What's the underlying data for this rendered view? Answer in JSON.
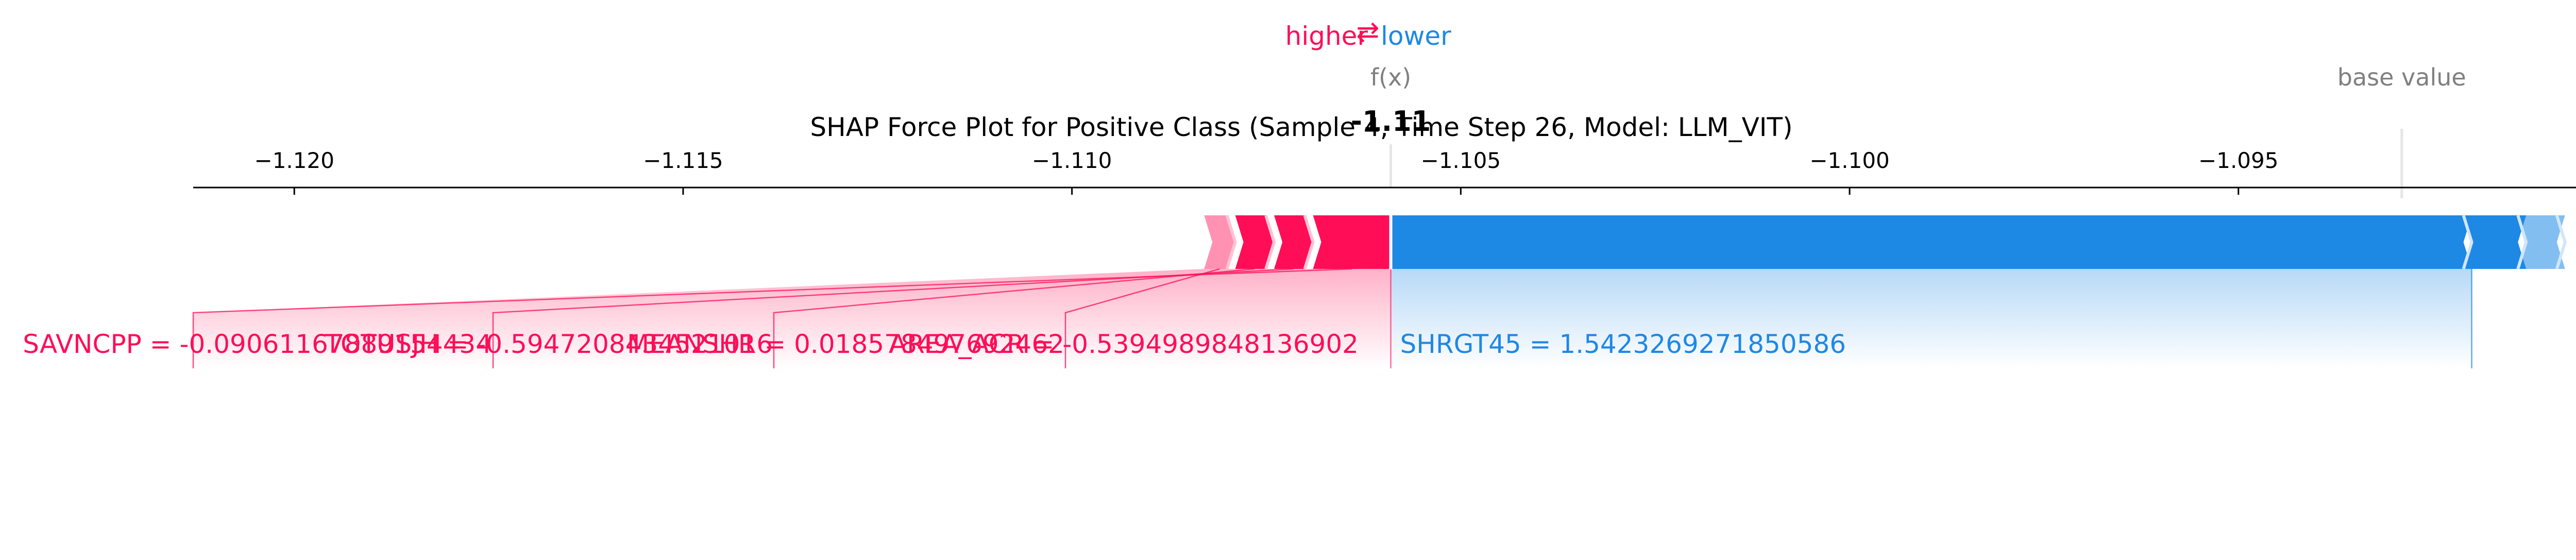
{
  "chart_data": {
    "type": "force",
    "title": "SHAP Force Plot for Positive Class (Sample 4, Time Step 26, Model: LLM_VIT)",
    "header": {
      "higher": "higher",
      "arrow": "⇄",
      "lower": "lower"
    },
    "fx_label": "f(x)",
    "fx_value_text": "-1.11",
    "fx_value": -1.1059,
    "base_label": "base value",
    "base_value": -1.0929,
    "xlim": [
      -1.1213,
      -1.0905
    ],
    "x_ticks": [
      -1.12,
      -1.115,
      -1.11,
      -1.105,
      -1.1,
      -1.095
    ],
    "x_tick_labels": [
      "−1.120",
      "−1.115",
      "−1.110",
      "−1.105",
      "−1.100",
      "−1.095"
    ],
    "positive_features": [
      {
        "label": "SAVNCPP = -0.09061167889154434",
        "start": -1.1059,
        "end": -1.1069
      },
      {
        "label": "TOTUSJH = -0.5947208434521016",
        "start": -1.1069,
        "end": -1.1074
      },
      {
        "label": "MEANSHR = 0.018578497692462",
        "start": -1.1074,
        "end": -1.1079
      },
      {
        "label": "AREA_ACR = -0.5394989848136902",
        "start": -1.1079,
        "end": -1.1083
      }
    ],
    "negative_features": [
      {
        "label": "SHRGT45 = 1.5423269271850586",
        "start": -1.1059,
        "end": -1.092
      }
    ],
    "negative_tail": [
      -1.0913,
      -1.0908
    ],
    "colors": {
      "positive": "#ff0d57",
      "negative": "#1e88e5",
      "gray": "#808080"
    }
  }
}
